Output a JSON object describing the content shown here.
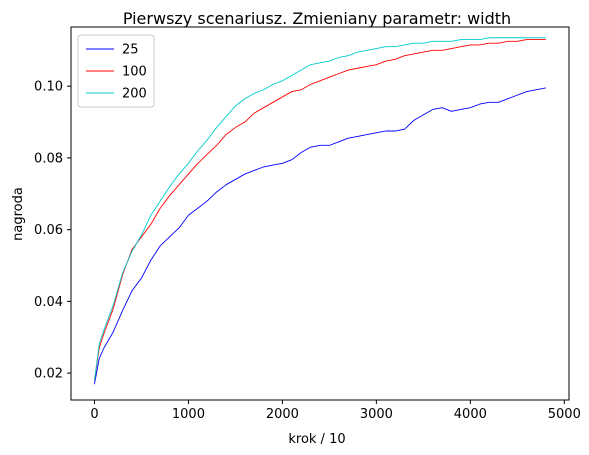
{
  "chart_data": {
    "type": "line",
    "title": "Pierwszy scenariusz. Zmieniany parametr: width",
    "xlabel": "krok / 10",
    "ylabel": "nagroda",
    "xlim": [
      -250,
      5050
    ],
    "ylim": [
      0.0125,
      0.1165
    ],
    "x_ticks": [
      0,
      1000,
      2000,
      3000,
      4000,
      5000
    ],
    "x_tick_labels": [
      "0",
      "1000",
      "2000",
      "3000",
      "4000",
      "5000"
    ],
    "y_ticks": [
      0.02,
      0.04,
      0.06,
      0.08,
      0.1
    ],
    "y_tick_labels": [
      "0.02",
      "0.04",
      "0.06",
      "0.08",
      "0.10"
    ],
    "grid": false,
    "legend_position": "top-left",
    "series": [
      {
        "name": "25",
        "color": "#0000ff",
        "x": [
          0,
          50,
          100,
          200,
          300,
          400,
          500,
          600,
          700,
          800,
          900,
          1000,
          1100,
          1200,
          1300,
          1400,
          1500,
          1600,
          1700,
          1800,
          1900,
          2000,
          2100,
          2200,
          2300,
          2400,
          2500,
          2600,
          2700,
          2800,
          2900,
          3000,
          3100,
          3200,
          3300,
          3400,
          3500,
          3600,
          3700,
          3800,
          3900,
          4000,
          4100,
          4200,
          4300,
          4400,
          4500,
          4600,
          4700,
          4800
        ],
        "values": [
          0.017,
          0.024,
          0.027,
          0.0315,
          0.0375,
          0.043,
          0.0465,
          0.0515,
          0.0555,
          0.058,
          0.0605,
          0.064,
          0.066,
          0.068,
          0.0705,
          0.0725,
          0.074,
          0.0755,
          0.0765,
          0.0775,
          0.078,
          0.0785,
          0.0795,
          0.0815,
          0.083,
          0.0835,
          0.0835,
          0.0845,
          0.0855,
          0.086,
          0.0865,
          0.087,
          0.0875,
          0.0875,
          0.088,
          0.0905,
          0.092,
          0.0935,
          0.094,
          0.093,
          0.0935,
          0.094,
          0.095,
          0.0955,
          0.0955,
          0.0965,
          0.0975,
          0.0985,
          0.099,
          0.0995
        ]
      },
      {
        "name": "100",
        "color": "#ff0000",
        "x": [
          0,
          50,
          100,
          200,
          300,
          400,
          500,
          600,
          700,
          800,
          900,
          1000,
          1100,
          1200,
          1300,
          1400,
          1500,
          1600,
          1700,
          1800,
          1900,
          2000,
          2100,
          2200,
          2300,
          2400,
          2500,
          2600,
          2700,
          2800,
          2900,
          3000,
          3100,
          3200,
          3300,
          3400,
          3500,
          3600,
          3700,
          3800,
          3900,
          4000,
          4100,
          4200,
          4300,
          4400,
          4500,
          4600,
          4700,
          4800
        ],
        "values": [
          0.018,
          0.027,
          0.031,
          0.038,
          0.0475,
          0.0545,
          0.058,
          0.0615,
          0.066,
          0.0695,
          0.0725,
          0.0755,
          0.0785,
          0.081,
          0.0835,
          0.0865,
          0.0885,
          0.09,
          0.0925,
          0.094,
          0.0955,
          0.097,
          0.0985,
          0.099,
          0.1005,
          0.1015,
          0.1025,
          0.1035,
          0.1045,
          0.105,
          0.1055,
          0.106,
          0.107,
          0.1075,
          0.1085,
          0.109,
          0.1095,
          0.11,
          0.11,
          0.1105,
          0.111,
          0.1115,
          0.1115,
          0.112,
          0.112,
          0.1125,
          0.1125,
          0.113,
          0.113,
          0.113
        ]
      },
      {
        "name": "200",
        "color": "#00cccc",
        "x": [
          0,
          50,
          100,
          200,
          300,
          400,
          500,
          600,
          700,
          800,
          900,
          1000,
          1100,
          1200,
          1300,
          1400,
          1500,
          1600,
          1700,
          1800,
          1900,
          2000,
          2100,
          2200,
          2300,
          2400,
          2500,
          2600,
          2700,
          2800,
          2900,
          3000,
          3100,
          3200,
          3300,
          3400,
          3500,
          3600,
          3700,
          3800,
          3900,
          4000,
          4100,
          4200,
          4300,
          4400,
          4500,
          4600,
          4700,
          4800
        ],
        "values": [
          0.018,
          0.028,
          0.032,
          0.039,
          0.048,
          0.054,
          0.0585,
          0.064,
          0.068,
          0.072,
          0.0755,
          0.0785,
          0.082,
          0.085,
          0.0885,
          0.0915,
          0.0945,
          0.0965,
          0.098,
          0.099,
          0.1005,
          0.1015,
          0.103,
          0.1045,
          0.106,
          0.1065,
          0.107,
          0.108,
          0.1085,
          0.1095,
          0.11,
          0.1105,
          0.111,
          0.111,
          0.1115,
          0.112,
          0.112,
          0.1125,
          0.1125,
          0.1125,
          0.113,
          0.113,
          0.113,
          0.1135,
          0.1135,
          0.1135,
          0.1135,
          0.1135,
          0.1135,
          0.1135
        ]
      }
    ]
  }
}
